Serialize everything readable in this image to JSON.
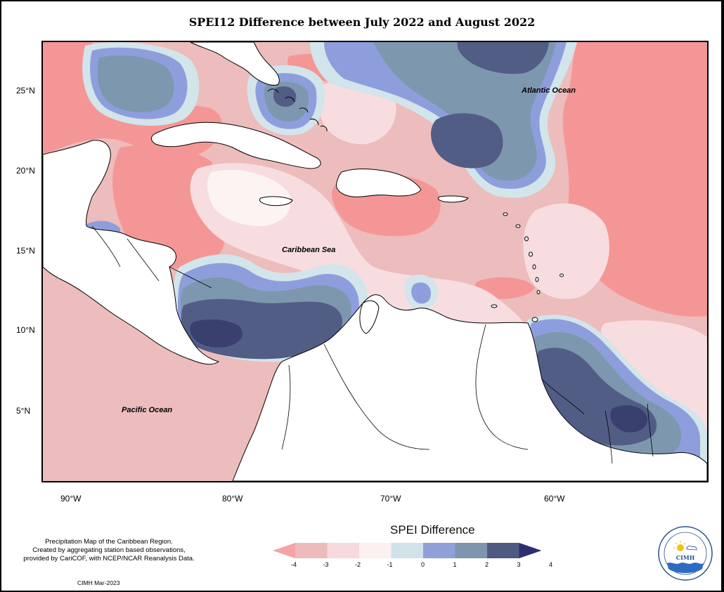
{
  "title": "SPEI12 Difference between July 2022 and August 2022",
  "lat_labels": [
    "25°N",
    "20°N",
    "15°N",
    "10°N",
    "5°N"
  ],
  "lon_labels": [
    "90°W",
    "80°W",
    "70°W",
    "60°W"
  ],
  "ocean_labels": {
    "atlantic": "Atlantic Ocean",
    "caribbean": "Caribbean Sea",
    "pacific": "Pacific Ocean"
  },
  "caption": {
    "line1": "Precipitation Map of the Caribbean Region.",
    "line2": "Created by aggregating station based observations,",
    "line3": "provided by CariCOF, with NCEP/NCAR Reanalysis Data."
  },
  "credit": "CIMH Mar-2023",
  "legend": {
    "title": "SPEI Difference",
    "ticks": [
      "-4",
      "-3",
      "-2",
      "-1",
      "0",
      "1",
      "2",
      "3",
      "4"
    ],
    "colors": [
      "#f5a3a3",
      "#ecbcbc",
      "#f6dadd",
      "#fbf1f1",
      "#cfe3e8",
      "#8f9fd8",
      "#7d96ad",
      "#4f5a82",
      "#2e2e6e"
    ]
  },
  "logo": {
    "text": "CIMH"
  },
  "colors": {
    "strong_dry": "#f59696",
    "dry": "#edbcbc",
    "light_dry": "#f8dde0",
    "neutral": "#fdf3f3",
    "light_wet": "#d2e5ea",
    "wet": "#8e9edc",
    "wetter": "#7d97ae",
    "wettest": "#525d86",
    "land": "#ffffff"
  }
}
